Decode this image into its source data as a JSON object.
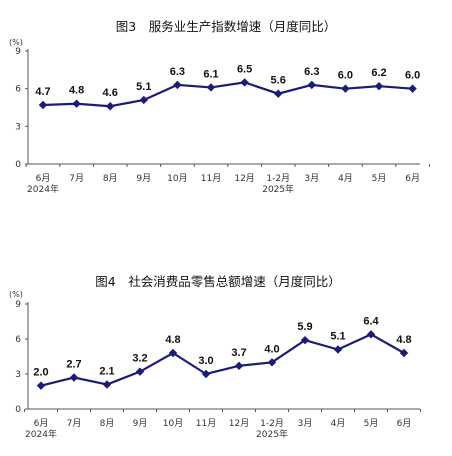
{
  "chart_data": [
    {
      "type": "line",
      "title": "图3　服务业生产指数增速（月度同比）",
      "unit_label": "(%)",
      "ylim": [
        0,
        9
      ],
      "yticks": [
        "0",
        "3",
        "6",
        "9"
      ],
      "categories": [
        "6月",
        "7月",
        "8月",
        "9月",
        "10月",
        "11月",
        "12月",
        "1-2月",
        "3月",
        "4月",
        "5月",
        "6月"
      ],
      "year_labels": [
        {
          "text": "2024年",
          "index": 0
        },
        {
          "text": "2025年",
          "index": 7
        }
      ],
      "series": [
        {
          "values": [
            4.7,
            4.8,
            4.6,
            5.1,
            6.3,
            6.1,
            6.5,
            5.6,
            6.3,
            6.0,
            6.2,
            6.0
          ],
          "labels": [
            "4.7",
            "4.8",
            "4.6",
            "5.1",
            "6.3",
            "6.1",
            "6.5",
            "5.6",
            "6.3",
            "6.0",
            "6.2",
            "6.0"
          ]
        }
      ],
      "line_color": "#1b1b7a",
      "grid": false
    },
    {
      "type": "line",
      "title": "图4　社会消费品零售总额增速（月度同比）",
      "unit_label": "(%)",
      "ylim": [
        0,
        9
      ],
      "yticks": [
        "0",
        "3",
        "6",
        "9"
      ],
      "categories": [
        "6月",
        "7月",
        "8月",
        "9月",
        "10月",
        "11月",
        "12月",
        "1-2月",
        "3月",
        "4月",
        "5月",
        "6月"
      ],
      "year_labels": [
        {
          "text": "2024年",
          "index": 0
        },
        {
          "text": "2025年",
          "index": 7
        }
      ],
      "series": [
        {
          "values": [
            2.0,
            2.7,
            2.1,
            3.2,
            4.8,
            3.0,
            3.7,
            4.0,
            5.9,
            5.1,
            6.4,
            4.8
          ],
          "labels": [
            "2.0",
            "2.7",
            "2.1",
            "3.2",
            "4.8",
            "3.0",
            "3.7",
            "4.0",
            "5.9",
            "5.1",
            "6.4",
            "4.8"
          ]
        }
      ],
      "line_color": "#1b1b7a",
      "grid": false
    }
  ]
}
